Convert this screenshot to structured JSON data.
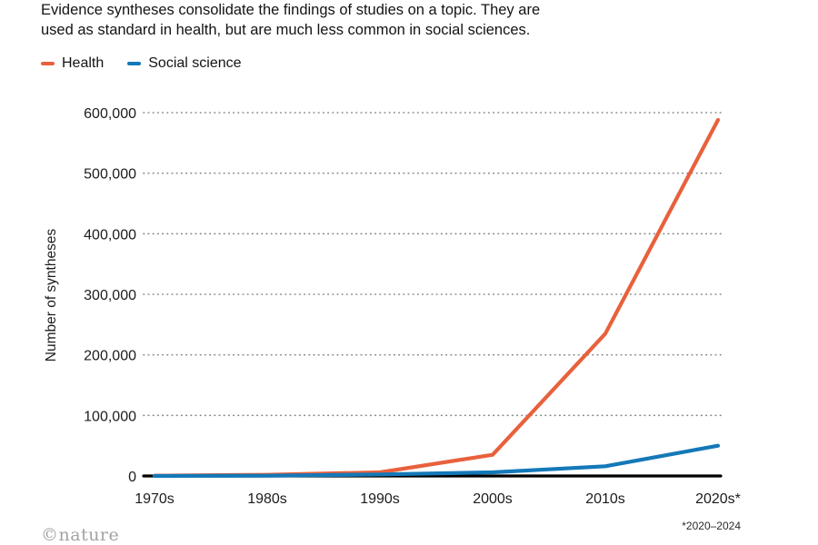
{
  "header": {
    "line1": "Evidence syntheses consolidate the findings of studies on a topic. They are",
    "line2": "used as standard in health, but are much less common in social sciences."
  },
  "legend": {
    "items": [
      {
        "label": "Health",
        "color": "#e8613c"
      },
      {
        "label": "Social science",
        "color": "#1479b8"
      }
    ]
  },
  "chart_data": {
    "type": "line",
    "categories": [
      "1970s",
      "1980s",
      "1990s",
      "2000s",
      "2010s",
      "2020s*"
    ],
    "series": [
      {
        "name": "Health",
        "color": "#e8613c",
        "values": [
          500,
          2000,
          6000,
          35000,
          235000,
          588000
        ]
      },
      {
        "name": "Social science",
        "color": "#1479b8",
        "values": [
          100,
          500,
          2500,
          6000,
          16000,
          50000
        ]
      }
    ],
    "title": "",
    "xlabel": "",
    "ylabel": "Number of syntheses",
    "ylim": [
      0,
      600000
    ],
    "yticks": [
      0,
      100000,
      200000,
      300000,
      400000,
      500000,
      600000
    ],
    "grid": "dotted-horizontal",
    "legend_position": "top-left",
    "axis_color": "#000000",
    "gridline_color": "#8a8a8a"
  },
  "footnote": "*2020–2024",
  "logo": "©nature"
}
